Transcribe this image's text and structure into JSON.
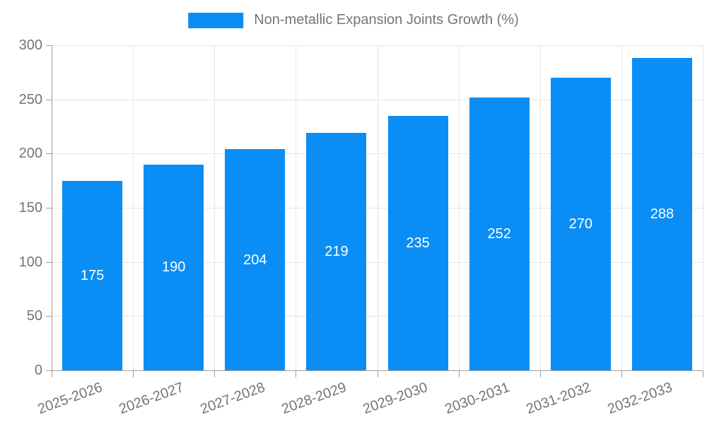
{
  "legend": {
    "label": "Non-metallic Expansion Joints Growth (%)"
  },
  "colors": {
    "bar": "#0a8ef5",
    "axis_line": "#9e9e9e",
    "gridline": "#e5e5e5",
    "tick_text": "#757575",
    "value_label": "#ffffff",
    "background": "#ffffff"
  },
  "chart_data": {
    "type": "bar",
    "title": "",
    "xlabel": "",
    "ylabel": "",
    "categories": [
      "2025-2026",
      "2026-2027",
      "2027-2028",
      "2028-2029",
      "2029-2030",
      "2030-2031",
      "2031-2032",
      "2032-2033"
    ],
    "values": [
      175,
      190,
      204,
      219,
      235,
      252,
      270,
      288
    ],
    "series_name": "Non-metallic Expansion Joints Growth (%)",
    "ylim": [
      0,
      300
    ],
    "yticks": [
      0,
      50,
      100,
      150,
      200,
      250,
      300
    ],
    "grid": true,
    "legend_position": "top-center",
    "value_labels_position": "inside-center",
    "x_tick_rotation_deg": -20
  }
}
